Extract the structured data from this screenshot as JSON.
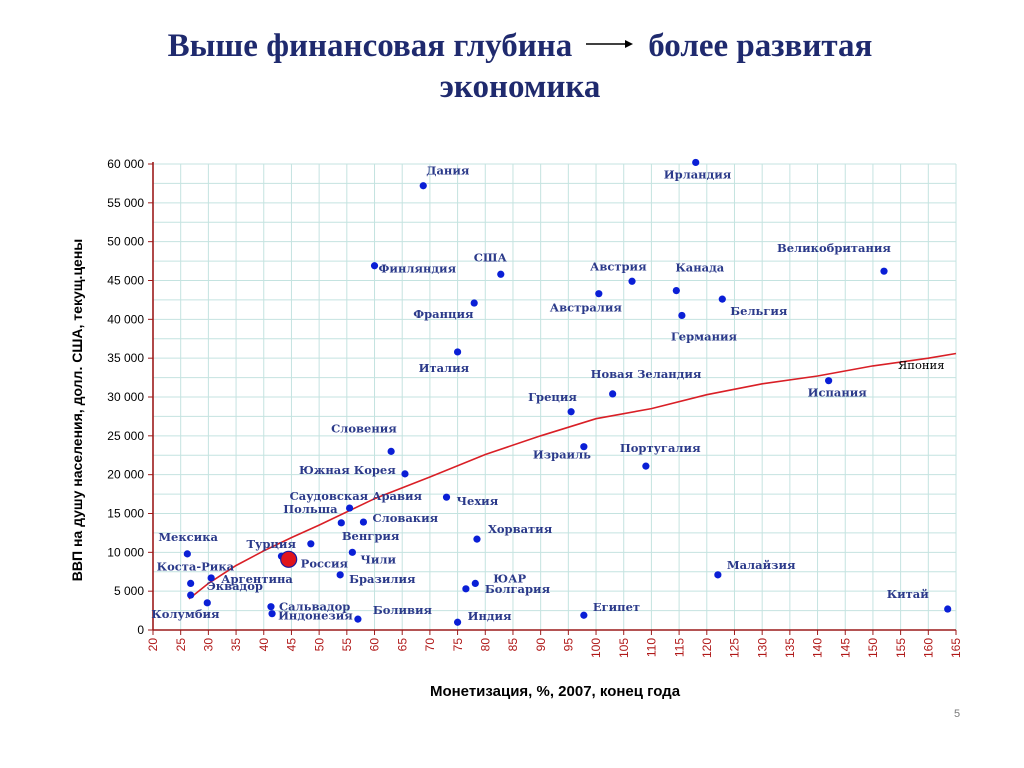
{
  "slide": {
    "title_part1": "Выше финансовая глубина",
    "title_part2": "более развитая",
    "title_line2": "экономика",
    "page_number": "5"
  },
  "colors": {
    "title": "#1f2a6e",
    "points": "#0a1fd6",
    "russia": "#e0141c",
    "trend": "#d91f26",
    "axis": "#9c1a1a",
    "grid": "#c4e3e0",
    "labels": "#2b3a8a",
    "x_ticks": "#b01818"
  },
  "chart_data": {
    "type": "scatter",
    "title": "",
    "xlabel": "Монетизация, %, 2007, конец года",
    "ylabel": "ВВП на душу населения, долл. США, текущ.цены",
    "xlim": [
      20,
      165
    ],
    "ylim": [
      0,
      60000
    ],
    "x_ticks": [
      20,
      25,
      30,
      35,
      40,
      45,
      50,
      55,
      60,
      65,
      70,
      75,
      80,
      85,
      90,
      95,
      100,
      105,
      110,
      115,
      120,
      125,
      130,
      135,
      140,
      145,
      150,
      155,
      160,
      165
    ],
    "y_ticks": [
      "0",
      "5 000",
      "10 000",
      "15 000",
      "20 000",
      "25 000",
      "30 000",
      "35 000",
      "40 000",
      "45 000",
      "50 000",
      "55 000",
      "60 000"
    ],
    "y_tick_values": [
      0,
      5000,
      10000,
      15000,
      20000,
      25000,
      30000,
      35000,
      40000,
      45000,
      50000,
      55000,
      60000
    ],
    "grid": true,
    "points": [
      {
        "name": "Дания",
        "x": 68.8,
        "y": 57200
      },
      {
        "name": "Ирландия",
        "x": 118,
        "y": 60200
      },
      {
        "name": "Финляндия",
        "x": 60,
        "y": 46900
      },
      {
        "name": "США",
        "x": 82.8,
        "y": 45800
      },
      {
        "name": "Австрия",
        "x": 106.5,
        "y": 44900
      },
      {
        "name": "Канада",
        "x": 114.5,
        "y": 43700
      },
      {
        "name": "Великобритания",
        "x": 152,
        "y": 46200
      },
      {
        "name": "Франция",
        "x": 78,
        "y": 42100
      },
      {
        "name": "Австралия",
        "x": 100.5,
        "y": 43300
      },
      {
        "name": "Бельгия",
        "x": 122.8,
        "y": 42600
      },
      {
        "name": "Германия",
        "x": 115.5,
        "y": 40500
      },
      {
        "name": "Италия",
        "x": 75,
        "y": 35800
      },
      {
        "name": "Новая Зеландия",
        "x": 103,
        "y": 30400
      },
      {
        "name": "Испания",
        "x": 142,
        "y": 32100
      },
      {
        "name": "Греция",
        "x": 95.5,
        "y": 28100
      },
      {
        "name": "Словения",
        "x": 63,
        "y": 23000
      },
      {
        "name": "Израиль",
        "x": 97.8,
        "y": 23600
      },
      {
        "name": "Португалия",
        "x": 109,
        "y": 21100
      },
      {
        "name": "Южная Корея",
        "x": 65.5,
        "y": 20100
      },
      {
        "name": "Саудовская Аравия",
        "x": 55.5,
        "y": 15700
      },
      {
        "name": "Чехия",
        "x": 73,
        "y": 17100
      },
      {
        "name": "Словакия",
        "x": 58,
        "y": 13900
      },
      {
        "name": "Польша",
        "x": 54,
        "y": 13800
      },
      {
        "name": "Венгрия",
        "x": 48.5,
        "y": 11100
      },
      {
        "name": "Турция",
        "x": 43.2,
        "y": 9500
      },
      {
        "name": "Хорватия",
        "x": 78.5,
        "y": 11700
      },
      {
        "name": "Мексика",
        "x": 26.2,
        "y": 9800
      },
      {
        "name": "Чили",
        "x": 56,
        "y": 10000
      },
      {
        "name": "Россия",
        "x": 44.5,
        "y": 9100,
        "highlight": true
      },
      {
        "name": "Коста-Рика",
        "x": 26.8,
        "y": 6000
      },
      {
        "name": "Аргентина",
        "x": 30.5,
        "y": 6700
      },
      {
        "name": "Бразилия",
        "x": 53.8,
        "y": 7100
      },
      {
        "name": "ЮАР",
        "x": 78.2,
        "y": 6000
      },
      {
        "name": "Болгария",
        "x": 76.5,
        "y": 5300
      },
      {
        "name": "Малайзия",
        "x": 122,
        "y": 7100
      },
      {
        "name": "Эквадор",
        "x": 26.8,
        "y": 4500
      },
      {
        "name": "Колумбия",
        "x": 29.8,
        "y": 3500
      },
      {
        "name": "Сальвадор",
        "x": 41.3,
        "y": 3000
      },
      {
        "name": "Индонезия",
        "x": 41.5,
        "y": 2100
      },
      {
        "name": "Боливия",
        "x": 57,
        "y": 1400
      },
      {
        "name": "Индия",
        "x": 75,
        "y": 1000
      },
      {
        "name": "Египет",
        "x": 97.8,
        "y": 1900
      },
      {
        "name": "Китай",
        "x": 163.5,
        "y": 2700
      }
    ],
    "trend": {
      "label": "Япония",
      "points": [
        [
          26.5,
          4000
        ],
        [
          30,
          6000
        ],
        [
          35,
          8300
        ],
        [
          40,
          10200
        ],
        [
          45,
          11900
        ],
        [
          50,
          13500
        ],
        [
          60,
          16900
        ],
        [
          70,
          19700
        ],
        [
          80,
          22600
        ],
        [
          90,
          25000
        ],
        [
          100,
          27200
        ],
        [
          110,
          28500
        ],
        [
          120,
          30300
        ],
        [
          130,
          31700
        ],
        [
          140,
          32700
        ],
        [
          150,
          34000
        ],
        [
          160,
          35000
        ],
        [
          165,
          35600
        ]
      ]
    }
  }
}
